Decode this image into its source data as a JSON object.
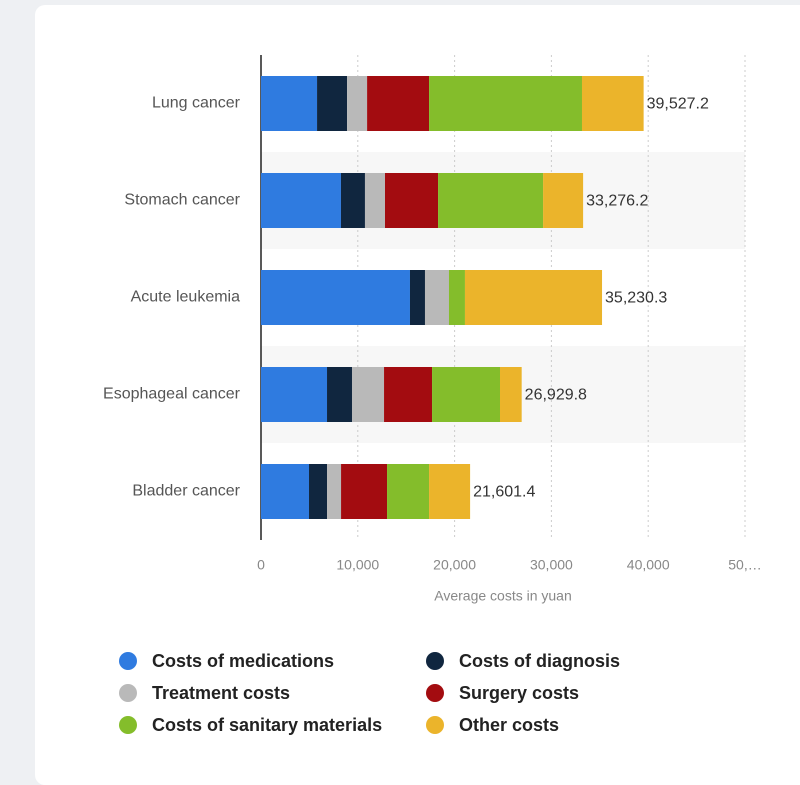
{
  "chart_data": {
    "type": "stacked-bar-horizontal",
    "x_label": "Average costs in yuan",
    "categories": [
      "Lung cancer",
      "Stomach cancer",
      "Acute leukemia",
      "Esophageal cancer",
      "Bladder cancer"
    ],
    "series": [
      {
        "name": "Costs of medications",
        "color": "#2f7be0",
        "values": [
          5790,
          8260,
          15390,
          6820,
          4960
        ]
      },
      {
        "name": "Costs of diagnosis",
        "color": "#10263f",
        "values": [
          3100,
          2480,
          1550,
          2580,
          1860
        ]
      },
      {
        "name": "Treatment costs",
        "color": "#b9b9b9",
        "values": [
          2070,
          2070,
          2480,
          3310,
          1450
        ]
      },
      {
        "name": "Surgery costs",
        "color": "#a30c10",
        "values": [
          6400,
          5480,
          0,
          4960,
          4750
        ]
      },
      {
        "name": "Costs of sanitary materials",
        "color": "#84bd2b",
        "values": [
          15800,
          10850,
          1650,
          7020,
          4340
        ]
      },
      {
        "name": "Other costs",
        "color": "#ebb42b",
        "values": [
          6367.2,
          4136.2,
          14160.3,
          2239.8,
          4241.4
        ]
      }
    ],
    "totals": [
      39527.2,
      33276.2,
      35230.3,
      26929.8,
      21601.4
    ],
    "total_labels": [
      "39,527.2",
      "33,276.2",
      "35,230.3",
      "26,929.8",
      "21,601.4"
    ],
    "xlim": [
      0,
      50000
    ],
    "xticks": [
      0,
      {
        "value": 10000,
        "label": "10,000"
      },
      {
        "value": 20000,
        "label": "20,000"
      },
      {
        "value": 30000,
        "label": "30,000"
      },
      {
        "value": 40000,
        "label": "40,000"
      },
      {
        "value": 50000,
        "label": "50,…"
      }
    ],
    "grid": true
  }
}
